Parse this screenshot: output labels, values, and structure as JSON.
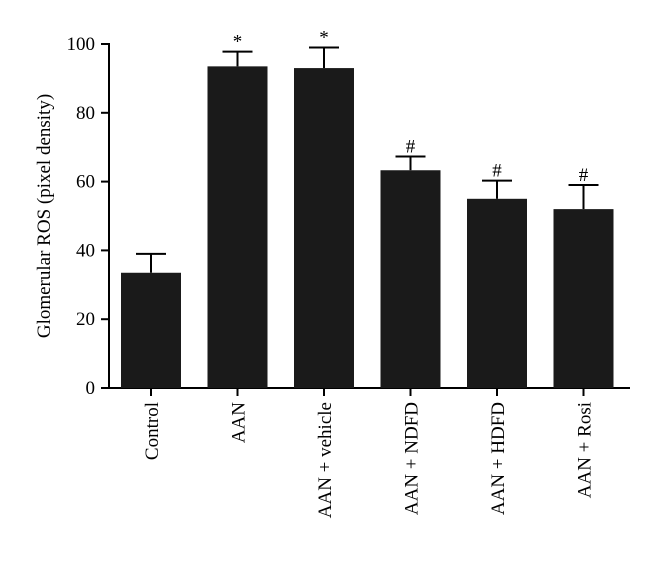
{
  "chart_data": {
    "type": "bar",
    "categories": [
      "Control",
      "AAN",
      "AAN + vehicle",
      "AAN + NDFD",
      "AAN + HDFD",
      "AAN + Rosi"
    ],
    "values": [
      33.5,
      93.5,
      93,
      63.3,
      55,
      52
    ],
    "errors": [
      5.5,
      4.3,
      6,
      4,
      5.3,
      7
    ],
    "annotations": [
      "",
      "*",
      "*",
      "#",
      "#",
      "#"
    ],
    "title": "",
    "xlabel": "",
    "ylabel": "Glomerular ROS (pixel density)",
    "ylim": [
      0,
      100
    ],
    "yticks": [
      0,
      20,
      40,
      60,
      80,
      100
    ],
    "grid": false,
    "bar_color": "#1a1a1a"
  }
}
